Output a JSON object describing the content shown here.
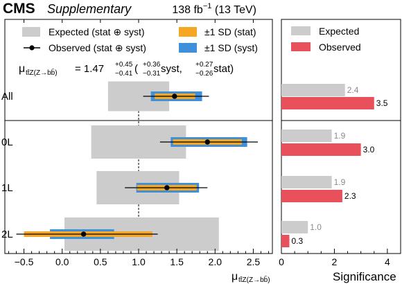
{
  "header": {
    "experiment": "CMS",
    "tag": "Supplementary",
    "lumi": "138 fb",
    "lumi_exp": "−1",
    "energy": " (13 TeV)"
  },
  "legend_left": {
    "expected": "Expected (stat ⊕ syst)",
    "observed": "Observed (stat ⊕ syst)",
    "stat": "±1 SD (stat)",
    "syst": "±1 SD (syst)"
  },
  "result": {
    "mu_sym": "μ",
    "mu_sub": "tt̄Z(Z→bb̄)",
    "equals": " = 1.47",
    "tot_up": "+0.45",
    "tot_dn": "−0.41",
    "open": " (",
    "syst_up": "+0.36",
    "syst_dn": "−0.31",
    "syst_word": " syst, ",
    "stat_up": "+0.27",
    "stat_dn": "−0.26",
    "stat_word": " stat)"
  },
  "legend_right": {
    "expected": "Expected",
    "observed": "Observed"
  },
  "axes": {
    "left_xlabel_sym": "μ",
    "left_xlabel_sub": "tt̄Z(Z→bb̄)",
    "right_xlabel": "Significance"
  },
  "colors": {
    "expected_fill": "#cccccc",
    "stat_fill": "#f5a623",
    "syst_fill": "#3f90da",
    "observed_bar": "#e8505b",
    "expected_bar": "#cccccc"
  },
  "chart_data": [
    {
      "type": "bar",
      "title": "",
      "xlabel": "μ_ttZ(Z→bb)",
      "xlim": [
        -0.75,
        2.75
      ],
      "xticks": [
        "−0.5",
        "0.0",
        "0.5",
        "1.0",
        "1.5",
        "2.0",
        "2.5"
      ],
      "xtick_values": [
        -0.5,
        0.0,
        0.5,
        1.0,
        1.5,
        2.0,
        2.5
      ],
      "reference_line": 1.0,
      "categories": [
        "All",
        "0L",
        "1L",
        "2L"
      ],
      "expected_interval": [
        [
          0.6,
          1.4
        ],
        [
          0.38,
          1.62
        ],
        [
          0.45,
          1.53
        ],
        [
          0.03,
          2.05
        ]
      ],
      "observed": [
        1.47,
        1.9,
        1.37,
        0.28
      ],
      "observed_total": [
        [
          1.06,
          1.92
        ],
        [
          1.28,
          2.56
        ],
        [
          0.82,
          1.9
        ],
        [
          -0.6,
          1.25
        ]
      ],
      "stat_interval": [
        [
          1.21,
          1.74
        ],
        [
          1.45,
          2.35
        ],
        [
          0.98,
          1.76
        ],
        [
          -0.5,
          1.18
        ]
      ],
      "syst_interval": [
        [
          1.16,
          1.83
        ],
        [
          1.42,
          2.42
        ],
        [
          0.97,
          1.79
        ],
        [
          -0.16,
          0.68
        ]
      ]
    },
    {
      "type": "bar",
      "title": "",
      "xlabel": "Significance",
      "xlim": [
        0,
        4.5
      ],
      "xticks": [
        "0",
        "2",
        "4"
      ],
      "xtick_values": [
        0,
        2,
        4
      ],
      "categories": [
        "All",
        "0L",
        "1L",
        "2L"
      ],
      "series": [
        {
          "name": "Expected",
          "values": [
            2.4,
            1.9,
            1.9,
            1.0
          ],
          "labels": [
            "2.4",
            "1.9",
            "1.9",
            "1.0"
          ]
        },
        {
          "name": "Observed",
          "values": [
            3.5,
            3.0,
            2.3,
            0.3
          ],
          "labels": [
            "3.5",
            "3.0",
            "2.3",
            "0.3"
          ]
        }
      ]
    }
  ]
}
